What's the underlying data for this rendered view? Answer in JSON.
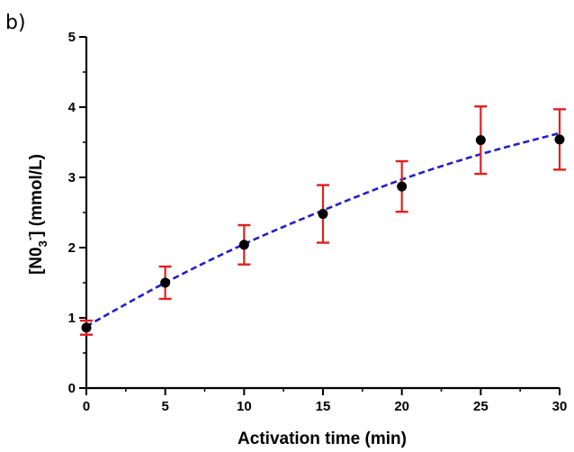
{
  "panel_label": "b)",
  "chart_data": {
    "type": "scatter",
    "title": "",
    "xlabel": "Activation time (min)",
    "ylabel": {
      "prefix": "[N0",
      "subscript": "3",
      "superscript": "-",
      "suffix": "] (mmol/L)"
    },
    "xlim": [
      0,
      30
    ],
    "ylim": [
      0,
      5
    ],
    "x_ticks": [
      "0",
      "5",
      "10",
      "15",
      "20",
      "25",
      "30"
    ],
    "y_ticks": [
      "0",
      "1",
      "2",
      "3",
      "4",
      "5"
    ],
    "grid": false,
    "legend": "none",
    "series": [
      {
        "x": [
          0,
          5,
          10,
          15,
          20,
          25,
          30
        ],
        "y": [
          0.86,
          1.5,
          2.04,
          2.48,
          2.87,
          3.53,
          3.54
        ],
        "error": [
          0.1,
          0.23,
          0.28,
          0.41,
          0.36,
          0.48,
          0.43
        ],
        "marker_color": "#000000",
        "error_color": "#e02020"
      }
    ],
    "fit": {
      "style": "dashed",
      "color": "#2020c8",
      "x": [
        0,
        5,
        10,
        15,
        20,
        25,
        30
      ],
      "y": [
        0.88,
        1.5,
        2.05,
        2.53,
        2.97,
        3.33,
        3.63
      ]
    }
  }
}
